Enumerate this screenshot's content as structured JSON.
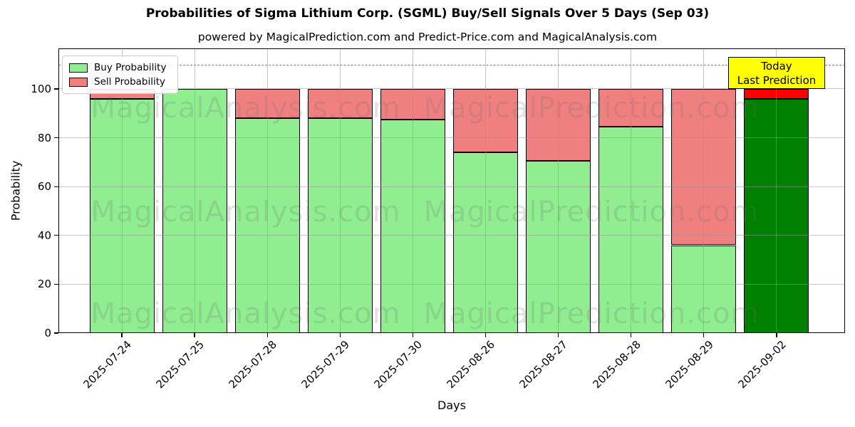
{
  "title": "Probabilities of Sigma Lithium Corp. (SGML) Buy/Sell Signals Over 5 Days (Sep 03)",
  "subtitle": "powered by MagicalPrediction.com and Predict-Price.com and MagicalAnalysis.com",
  "legend": {
    "items": [
      {
        "label": "Buy Probability",
        "color": "#90EE90"
      },
      {
        "label": "Sell Probability",
        "color": "#F08080"
      }
    ]
  },
  "annotation": {
    "line1": "Today",
    "line2": "Last Prediction",
    "bg_color": "#FFFF00"
  },
  "watermarks": {
    "left_text": "MagicalAnalysis.com",
    "right_text": "MagicalPrediction.com"
  },
  "chart_data": {
    "type": "bar",
    "stacked": true,
    "title": "Probabilities of Sigma Lithium Corp. (SGML) Buy/Sell Signals Over 5 Days (Sep 03)",
    "xlabel": "Days",
    "ylabel": "Probability",
    "categories": [
      "2025-07-24",
      "2025-07-25",
      "2025-07-28",
      "2025-07-29",
      "2025-07-30",
      "2025-08-26",
      "2025-08-27",
      "2025-08-28",
      "2025-08-29",
      "2025-09-02"
    ],
    "series": [
      {
        "name": "Buy Probability",
        "color": "#90EE90",
        "values": [
          96,
          100,
          88,
          88,
          87.5,
          74,
          70.5,
          84.5,
          36,
          96
        ]
      },
      {
        "name": "Sell Probability",
        "color": "#F08080",
        "values": [
          4,
          0,
          12,
          12,
          12.5,
          26,
          29.5,
          15.5,
          64,
          4
        ]
      }
    ],
    "today_index": 9,
    "today_colors": {
      "buy": "#008000",
      "sell": "#FF0000"
    },
    "yticks": [
      0,
      20,
      40,
      60,
      80,
      100
    ],
    "ylim": [
      0,
      116.6
    ],
    "dashed_line_y": 110,
    "grid": true,
    "legend_position": "upper left",
    "bar_edge_color": "#000000"
  }
}
